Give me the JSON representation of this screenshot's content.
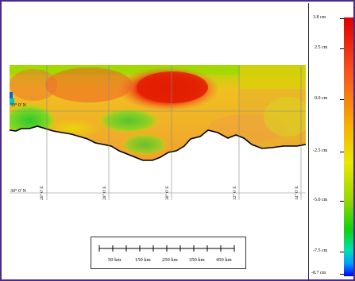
{
  "map": {
    "latitude_labels": [
      "33° 0' N",
      "30° 0' N"
    ],
    "longitude_labels": [
      "26° 0' E",
      "28° 0' E",
      "30° 0' E",
      "32° 0' E",
      "34° 0' E"
    ],
    "land_color": "#ffffff",
    "coastline_color": "#000000"
  },
  "legend": {
    "labels": [
      "3.8 cm",
      "2.5 cm",
      "0.0 cm",
      "-2.5 cm",
      "-5.0 cm",
      "-7.5 cm",
      "-8.7 cm"
    ],
    "colors": [
      "#e00000",
      "#f5501e",
      "#f8b000",
      "#e8e800",
      "#9ad800",
      "#10d010",
      "#00e0b0",
      "#00a0ff",
      "#0000ff"
    ]
  },
  "scalebar": {
    "labels": [
      "50 km",
      "150 km",
      "250 km",
      "350 km",
      "450 km"
    ]
  }
}
